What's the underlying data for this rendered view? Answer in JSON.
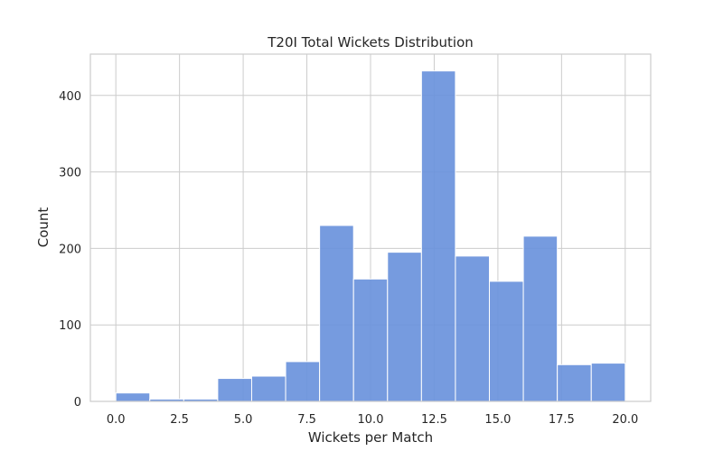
{
  "chart_data": {
    "type": "bar",
    "title": "T20I Total Wickets Distribution",
    "xlabel": "Wickets per Match",
    "ylabel": "Count",
    "bin_edges": [
      0,
      1.333,
      2.667,
      4,
      5.333,
      6.667,
      8,
      9.333,
      10.667,
      12,
      13.333,
      14.667,
      16,
      17.333,
      18.667,
      20
    ],
    "values": [
      11,
      3,
      3,
      30,
      33,
      52,
      230,
      160,
      195,
      432,
      190,
      157,
      216,
      48,
      50
    ],
    "xlim": [
      -1,
      21
    ],
    "ylim": [
      0,
      454
    ],
    "x_ticks": [
      0.0,
      2.5,
      5.0,
      7.5,
      10.0,
      12.5,
      15.0,
      17.5,
      20.0
    ],
    "x_tick_labels": [
      "0.0",
      "2.5",
      "5.0",
      "7.5",
      "10.0",
      "12.5",
      "15.0",
      "17.5",
      "20.0"
    ],
    "y_ticks": [
      0,
      100,
      200,
      300,
      400
    ],
    "y_tick_labels": [
      "0",
      "100",
      "200",
      "300",
      "400"
    ],
    "bar_color": "#6a92dc",
    "grid": true,
    "legend": "none"
  }
}
